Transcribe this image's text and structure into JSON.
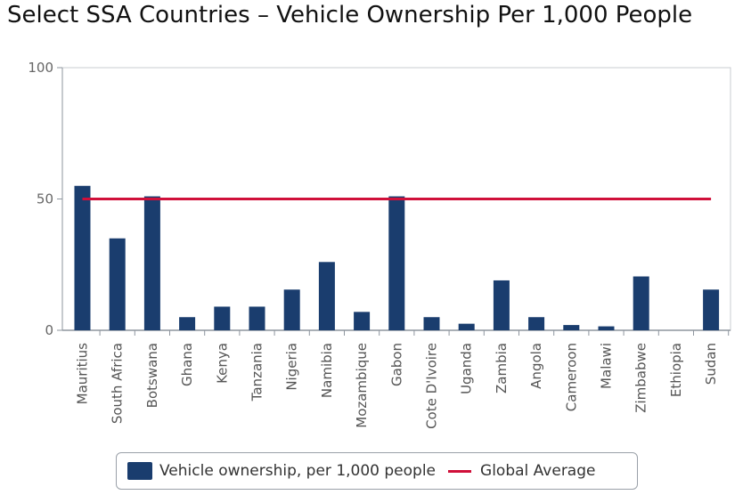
{
  "chart_data": {
    "type": "bar",
    "title": "Select SSA Countries – Vehicle Ownership Per 1,000 People",
    "xlabel": "",
    "ylabel": "",
    "ylim": [
      0,
      100
    ],
    "yticks": [
      "0",
      "50",
      "100"
    ],
    "categories": [
      "Mauritius",
      "South Africa",
      "Botswana",
      "Ghana",
      "Kenya",
      "Tanzania",
      "Nigeria",
      "Namibia",
      "Mozambique",
      "Gabon",
      "Cote D'Ivoire",
      "Uganda",
      "Zambia",
      "Angola",
      "Cameroon",
      "Malawi",
      "Zimbabwe",
      "Ethiopia",
      "Sudan"
    ],
    "series": [
      {
        "name": "Vehicle ownership, per 1,000 people",
        "type": "bar",
        "color": "#1a3d6e",
        "values": [
          55,
          35,
          51,
          5,
          9,
          9,
          15.5,
          26,
          7,
          51,
          5,
          2.5,
          19,
          5,
          2,
          1.5,
          20.5,
          0,
          15.5
        ]
      },
      {
        "name": "Global Average",
        "type": "line",
        "color": "#d0103a",
        "value": 50
      }
    ],
    "grid": false,
    "legend_position": "bottom"
  }
}
